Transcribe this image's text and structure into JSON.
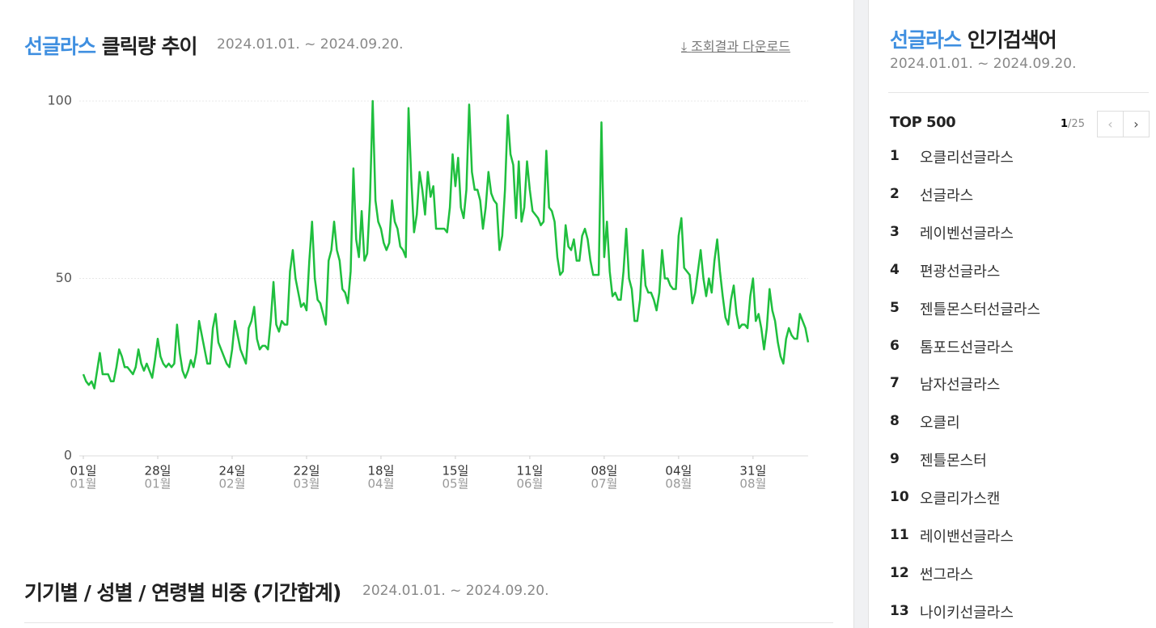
{
  "chart_header": {
    "keyword": "선글라스",
    "title": "클릭량 추이",
    "period": "2024.01.01. ~ 2024.09.20.",
    "download": "조회결과 다운로드"
  },
  "chart_data": {
    "type": "line",
    "ylim": [
      0,
      100
    ],
    "yticks": [
      0,
      50,
      100
    ],
    "grid": true,
    "xlim": [
      0,
      263
    ],
    "xticks": [
      {
        "value": 0,
        "label": "01일",
        "sublabel": "01월"
      },
      {
        "value": 27,
        "label": "28일",
        "sublabel": "01월"
      },
      {
        "value": 54,
        "label": "24일",
        "sublabel": "02월"
      },
      {
        "value": 81,
        "label": "22일",
        "sublabel": "03월"
      },
      {
        "value": 108,
        "label": "18일",
        "sublabel": "04월"
      },
      {
        "value": 135,
        "label": "15일",
        "sublabel": "05월"
      },
      {
        "value": 162,
        "label": "11일",
        "sublabel": "06월"
      },
      {
        "value": 189,
        "label": "08일",
        "sublabel": "07월"
      },
      {
        "value": 216,
        "label": "04일",
        "sublabel": "08월"
      },
      {
        "value": 243,
        "label": "31일",
        "sublabel": "08월"
      }
    ],
    "series": [
      {
        "color": "#1fbf3e",
        "values": [
          23,
          21,
          20,
          21,
          19,
          24,
          29,
          23,
          23,
          23,
          21,
          21,
          25,
          30,
          28,
          25,
          25,
          24,
          23,
          25,
          30,
          26,
          24,
          26,
          24,
          22,
          27,
          33,
          28,
          26,
          25,
          26,
          25,
          26,
          37,
          29,
          24,
          22,
          24,
          27,
          25,
          29,
          38,
          34,
          30,
          26,
          26,
          36,
          40,
          32,
          30,
          28,
          26,
          25,
          30,
          38,
          34,
          30,
          28,
          26,
          36,
          38,
          42,
          33,
          30,
          31,
          31,
          30,
          38,
          49,
          37,
          35,
          38,
          37,
          37,
          52,
          58,
          50,
          46,
          42,
          43,
          41,
          55,
          66,
          50,
          44,
          43,
          40,
          37,
          55,
          58,
          66,
          58,
          55,
          47,
          46,
          43,
          52,
          81,
          61,
          56,
          69,
          55,
          57,
          72,
          100,
          72,
          66,
          64,
          60,
          58,
          60,
          72,
          66,
          64,
          59,
          58,
          56,
          98,
          78,
          63,
          68,
          80,
          75,
          68,
          80,
          73,
          76,
          64,
          64,
          64,
          64,
          63,
          70,
          85,
          76,
          84,
          70,
          67,
          75,
          99,
          80,
          75,
          75,
          72,
          64,
          70,
          80,
          74,
          72,
          71,
          58,
          62,
          75,
          96,
          85,
          82,
          67,
          83,
          66,
          70,
          83,
          75,
          69,
          68,
          67,
          65,
          66,
          86,
          70,
          69,
          66,
          56,
          51,
          52,
          65,
          59,
          58,
          61,
          55,
          55,
          62,
          64,
          61,
          55,
          51,
          51,
          51,
          94,
          56,
          66,
          52,
          45,
          46,
          44,
          44,
          52,
          64,
          50,
          47,
          38,
          38,
          44,
          58,
          48,
          46,
          46,
          44,
          41,
          46,
          58,
          50,
          50,
          48,
          47,
          47,
          62,
          67,
          53,
          52,
          51,
          43,
          46,
          52,
          58,
          50,
          45,
          50,
          46,
          55,
          61,
          52,
          45,
          39,
          37,
          44,
          48,
          40,
          36,
          37,
          37,
          36,
          45,
          50,
          38,
          40,
          36,
          30,
          36,
          47,
          41,
          38,
          32,
          28,
          26,
          33,
          36,
          34,
          33,
          33,
          40,
          38,
          36,
          32
        ]
      }
    ]
  },
  "share_section": {
    "title": "기기별 / 성별 / 연령별 비중 (기간합계)",
    "period": "2024.01.01. ~ 2024.09.20."
  },
  "sidebar": {
    "keyword": "선글라스",
    "title": "인기검색어",
    "period": "2024.01.01. ~ 2024.09.20.",
    "top_label": "TOP 500",
    "page_current": "1",
    "page_total": "/25",
    "items": [
      {
        "rank": "1",
        "term": "오클리선글라스"
      },
      {
        "rank": "2",
        "term": "선글라스"
      },
      {
        "rank": "3",
        "term": "레이벤선글라스"
      },
      {
        "rank": "4",
        "term": "편광선글라스"
      },
      {
        "rank": "5",
        "term": "젠틀몬스터선글라스"
      },
      {
        "rank": "6",
        "term": "톰포드선글라스"
      },
      {
        "rank": "7",
        "term": "남자선글라스"
      },
      {
        "rank": "8",
        "term": "오클리"
      },
      {
        "rank": "9",
        "term": "젠틀몬스터"
      },
      {
        "rank": "10",
        "term": "오클리가스캔"
      },
      {
        "rank": "11",
        "term": "레이밴선글라스"
      },
      {
        "rank": "12",
        "term": "썬그라스"
      },
      {
        "rank": "13",
        "term": "나이키선글라스"
      }
    ]
  }
}
